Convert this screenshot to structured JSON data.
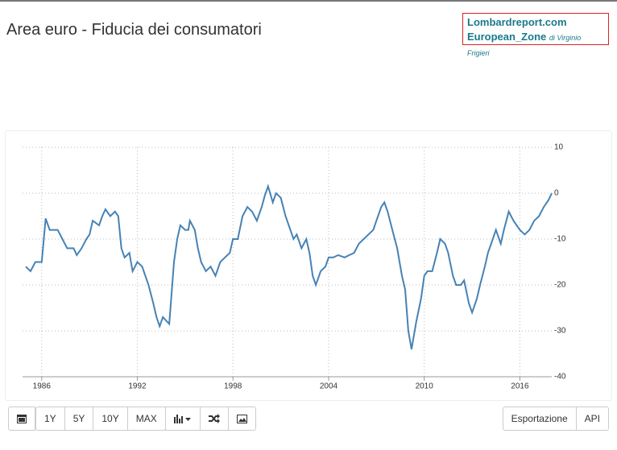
{
  "chart_data": {
    "type": "line",
    "title": "Area euro - Fiducia dei consumatori",
    "color": "#4682b4",
    "x": [
      1985.0,
      1985.3,
      1985.6,
      1986.0,
      1986.25,
      1986.5,
      1987.0,
      1987.3,
      1987.6,
      1988.0,
      1988.2,
      1988.5,
      1988.8,
      1989.0,
      1989.2,
      1989.6,
      1989.8,
      1990.0,
      1990.3,
      1990.6,
      1990.8,
      1991.0,
      1991.2,
      1991.5,
      1991.7,
      1992.0,
      1992.3,
      1992.5,
      1992.7,
      1993.0,
      1993.2,
      1993.4,
      1993.6,
      1994.0,
      1994.1,
      1994.3,
      1994.5,
      1994.7,
      1995.0,
      1995.2,
      1995.3,
      1995.6,
      1995.8,
      1996.0,
      1996.3,
      1996.6,
      1996.9,
      1997.2,
      1997.5,
      1997.8,
      1998.0,
      1998.3,
      1998.6,
      1998.9,
      1999.2,
      1999.5,
      1999.8,
      2000.0,
      2000.2,
      2000.5,
      2000.7,
      2001.0,
      2001.3,
      2001.6,
      2001.8,
      2002.0,
      2002.3,
      2002.6,
      2002.8,
      2003.0,
      2003.2,
      2003.5,
      2003.8,
      2004.0,
      2004.3,
      2004.6,
      2005.0,
      2005.3,
      2005.6,
      2005.9,
      2006.2,
      2006.5,
      2006.8,
      2007.0,
      2007.3,
      2007.5,
      2007.7,
      2008.0,
      2008.3,
      2008.6,
      2008.8,
      2009.0,
      2009.2,
      2009.5,
      2009.8,
      2010.0,
      2010.2,
      2010.5,
      2010.8,
      2011.0,
      2011.3,
      2011.5,
      2011.8,
      2012.0,
      2012.3,
      2012.5,
      2012.8,
      2013.0,
      2013.3,
      2013.5,
      2013.8,
      2014.0,
      2014.3,
      2014.5,
      2014.8,
      2015.0,
      2015.3,
      2015.6,
      2016.0,
      2016.3,
      2016.6,
      2016.9,
      2017.2,
      2017.5,
      2017.8,
      2018.0
    ],
    "values": [
      -16,
      -17,
      -15,
      -15,
      -5.5,
      -8,
      -8,
      -10,
      -12,
      -12,
      -13.5,
      -12,
      -10,
      -9,
      -6,
      -7,
      -5,
      -3.5,
      -5,
      -4,
      -5,
      -12,
      -14,
      -13,
      -17,
      -15,
      -16,
      -18,
      -20,
      -24,
      -27,
      -29,
      -27,
      -28.5,
      -24,
      -15,
      -10,
      -7,
      -8,
      -8,
      -6,
      -8,
      -12,
      -15,
      -17,
      -16,
      -18,
      -15,
      -14,
      -13,
      -10,
      -10,
      -5,
      -3,
      -4,
      -6,
      -3,
      -0.5,
      1.5,
      -2,
      0,
      -1,
      -5,
      -8,
      -10,
      -9,
      -12,
      -10,
      -13,
      -18,
      -20,
      -17,
      -16,
      -14,
      -14,
      -13.5,
      -14,
      -13.5,
      -13,
      -11,
      -10,
      -9,
      -8,
      -6,
      -3,
      -2,
      -4,
      -8,
      -12,
      -18,
      -21,
      -30,
      -34,
      -28,
      -23,
      -18,
      -17,
      -17,
      -13,
      -10,
      -11,
      -13,
      -18,
      -20,
      -20,
      -19,
      -24,
      -26,
      -23,
      -20,
      -16,
      -13,
      -10,
      -8,
      -11,
      -8,
      -4,
      -6,
      -8,
      -9,
      -8,
      -6,
      -5,
      -3,
      -1.5,
      0
    ],
    "xlim": [
      1985,
      2018
    ],
    "xticks": [
      1986,
      1992,
      1998,
      2004,
      2010,
      2016
    ],
    "ylim": [
      -40,
      10
    ],
    "yticks": [
      10,
      0,
      -10,
      -20,
      -30,
      -40
    ],
    "grid": true
  },
  "brand": {
    "site": "Lombardreport.com",
    "zone": "European_Zone",
    "author": "di Virginio Frigieri"
  },
  "ui": {
    "ranges": [
      "1Y",
      "5Y",
      "10Y",
      "MAX"
    ],
    "export": "Esportazione",
    "api": "API"
  }
}
